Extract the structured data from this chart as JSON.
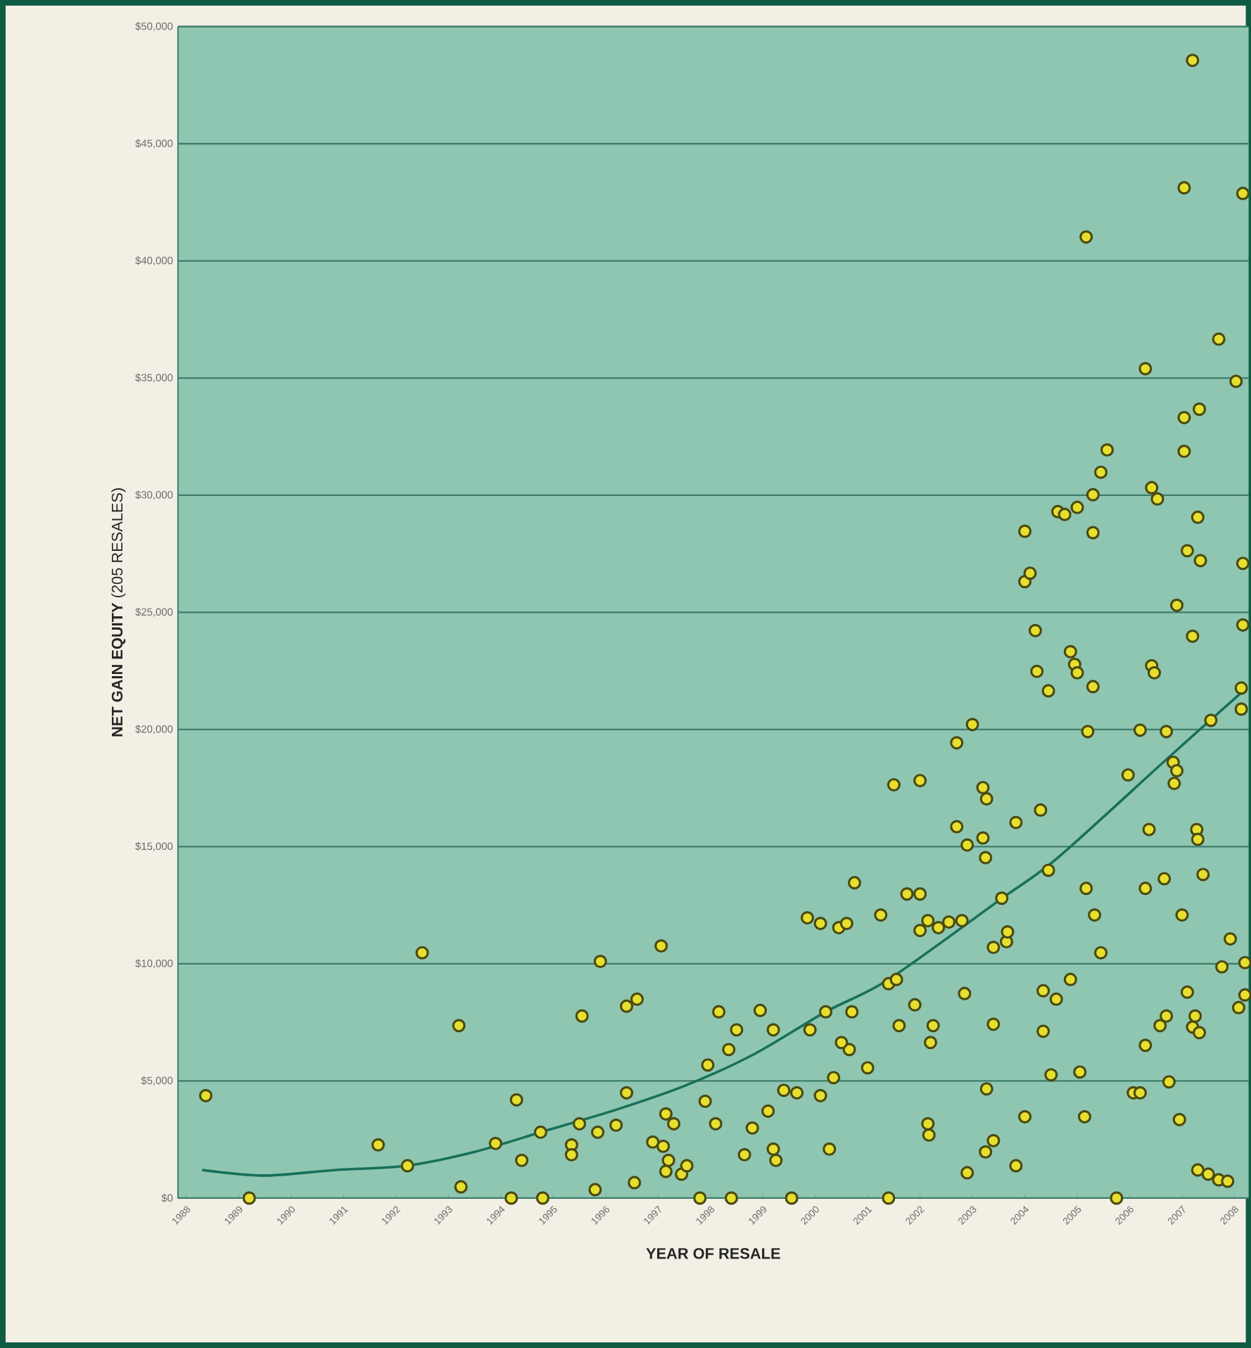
{
  "chart_data": {
    "type": "scatter",
    "xlabel": "YEAR OF RESALE",
    "ylabel": "**NET GAIN EQUITY** (205 RESALES)",
    "xlim": [
      1987.84,
      2008.27
    ],
    "ylim": [
      0,
      50000
    ],
    "xticks": [
      1988,
      1989,
      1990,
      1991,
      1992,
      1993,
      1994,
      1995,
      1996,
      1997,
      1998,
      1999,
      2000,
      2001,
      2002,
      2003,
      2004,
      2005,
      2006,
      2007,
      2008
    ],
    "yticks": [
      {
        "value": 0,
        "label": "$0"
      },
      {
        "value": 5000,
        "label": "$5,000"
      },
      {
        "value": 10000,
        "label": "$10,000"
      },
      {
        "value": 15000,
        "label": "$15,000"
      },
      {
        "value": 20000,
        "label": "$20,000"
      },
      {
        "value": 25000,
        "label": "$25,000"
      },
      {
        "value": 30000,
        "label": "$30,000"
      },
      {
        "value": 35000,
        "label": "$35,000"
      },
      {
        "value": 40000,
        "label": "$40,000"
      },
      {
        "value": 45000,
        "label": "$45,000"
      },
      {
        "value": 50000,
        "label": "$50,000"
      }
    ],
    "grid": "y",
    "marker": "circle",
    "series": [
      {
        "color": "#e6df2e",
        "x": [
          1988.37,
          1989.2,
          1991.66,
          1992.22,
          1992.5,
          1993.2,
          1993.24,
          1993.9,
          1994.2,
          1994.3,
          1994.4,
          1994.76,
          1994.8,
          1995.35,
          1995.35,
          1995.5,
          1995.55,
          1995.8,
          1995.9,
          1995.85,
          1996.2,
          1996.4,
          1996.4,
          1996.6,
          1996.55,
          1997.06,
          1996.9,
          1997.15,
          1997.3,
          1997.15,
          1997.2,
          1997.45,
          1997.55,
          1997.8,
          1997.9,
          1997.95,
          1998.16,
          1998.1,
          1998.35,
          1998.5,
          1998.4,
          1998.65,
          1998.8,
          1998.95,
          1999.1,
          1999.2,
          1999.25,
          1999.2,
          1999.4,
          1999.55,
          1999.65,
          1999.85,
          1999.9,
          2000.1,
          2000.1,
          2000.2,
          2000.27,
          2000.35,
          2000.45,
          2000.6,
          2000.65,
          2000.5,
          2000.75,
          2000.7,
          2001.0,
          2001.25,
          2001.4,
          2001.5,
          2001.4,
          2001.55,
          2001.6,
          2001.75,
          2001.9,
          2002.0,
          2002.0,
          2002.0,
          2002.15,
          2002.17,
          2002.2,
          2002.25,
          2002.15,
          2002.35,
          2002.55,
          2002.7,
          2002.8,
          2002.85,
          2002.9,
          2003.0,
          2002.7,
          2002.9,
          2003.2,
          2003.2,
          2003.27,
          2003.25,
          2003.25,
          2003.27,
          2003.4,
          2003.4,
          2003.4,
          2003.56,
          2003.65,
          2003.67,
          2003.83,
          2003.83,
          2004.0,
          2004.0,
          2004.0,
          2004.1,
          2004.2,
          2004.23,
          2004.3,
          2004.35,
          2004.35,
          2004.45,
          2004.45,
          2004.5,
          2004.6,
          2004.63,
          2004.76,
          2004.87,
          2004.87,
          2004.95,
          2005.0,
          2005.0,
          2005.05,
          2005.17,
          2005.17,
          2005.2,
          2005.14,
          2005.3,
          2005.3,
          2005.3,
          2005.33,
          2005.45,
          2005.45,
          2005.57,
          2005.75,
          2005.97,
          2006.07,
          2006.2,
          2006.2,
          2006.3,
          2006.3,
          2006.3,
          2006.37,
          2006.42,
          2006.47,
          2006.42,
          2006.53,
          2006.58,
          2006.66,
          2006.7,
          2006.7,
          2006.75,
          2006.83,
          2006.9,
          2006.85,
          2006.9,
          2006.95,
          2007.04,
          2007.04,
          2007.04,
          2007.0,
          2007.1,
          2007.1,
          2007.2,
          2007.2,
          2007.2,
          2007.25,
          2007.28,
          2007.3,
          2007.3,
          2007.3,
          2007.33,
          2007.35,
          2007.4,
          2007.33,
          2007.5,
          2007.55,
          2007.7,
          2007.7,
          2007.76,
          2007.87,
          2007.92,
          2008.03,
          2008.08,
          2008.16,
          2008.16,
          2008.16,
          2008.13,
          2008.13,
          2008.2,
          2008.2,
          1997.1
        ],
        "values": [
          4370,
          0,
          2270,
          1380,
          10470,
          7360,
          480,
          2330,
          0,
          4190,
          1610,
          2810,
          0,
          2270,
          1850,
          3170,
          7770,
          360,
          10100,
          2810,
          3110,
          4490,
          8190,
          8490,
          660,
          10760,
          2390,
          3590,
          3170,
          1140,
          1610,
          1020,
          1380,
          0,
          4130,
          5680,
          7950,
          3170,
          6340,
          7180,
          0,
          1850,
          2990,
          8010,
          3710,
          2090,
          1610,
          7180,
          4600,
          0,
          4490,
          11960,
          7180,
          11720,
          4370,
          7950,
          2090,
          5140,
          11540,
          11720,
          6340,
          6640,
          13460,
          7950,
          5560,
          12080,
          0,
          17640,
          9150,
          9330,
          7360,
          12980,
          8250,
          11420,
          12980,
          17820,
          3170,
          2690,
          6640,
          7360,
          11840,
          11540,
          11780,
          19430,
          11840,
          8730,
          1080,
          20210,
          15850,
          15070,
          15370,
          17520,
          17040,
          14530,
          1970,
          4660,
          2450,
          7420,
          10700,
          12800,
          10940,
          11360,
          1380,
          16030,
          28460,
          3470,
          26310,
          26670,
          24220,
          22480,
          16560,
          7120,
          8850,
          21650,
          13990,
          5260,
          8490,
          29300,
          29180,
          9330,
          23320,
          22780,
          29480,
          22420,
          5380,
          41020,
          13220,
          19910,
          3470,
          28400,
          30020,
          21830,
          12080,
          30980,
          10470,
          31930,
          0,
          18060,
          4490,
          4490,
          19970,
          35400,
          6520,
          13220,
          15730,
          22720,
          22420,
          30320,
          29840,
          7360,
          13630,
          19910,
          7770,
          4960,
          18600,
          18240,
          17700,
          25300,
          3350,
          31870,
          33310,
          43120,
          12080,
          8790,
          27630,
          23980,
          48560,
          7300,
          7770,
          15730,
          29060,
          15310,
          1200,
          33670,
          27210,
          13810,
          7060,
          1020,
          20390,
          36660,
          780,
          9870,
          720,
          11060,
          34860,
          8130,
          42880,
          27090,
          24460,
          21770,
          20870,
          8670,
          10050,
          2210
        ]
      },
      {
        "type": "line",
        "marker": "none",
        "color": "#17705a",
        "x": [
          1988.3,
          1989.5,
          1990.85,
          1992.2,
          1993.5,
          1994.85,
          1996.2,
          1997.5,
          1998.85,
          2000.2,
          2001.4,
          2003.53,
          2004.63,
          2006.7,
          2008.2
        ],
        "values": [
          1200,
          960,
          1200,
          1380,
          1970,
          2870,
          3770,
          4780,
          6160,
          7950,
          9330,
          12740,
          14530,
          18720,
          21710
        ]
      }
    ]
  }
}
